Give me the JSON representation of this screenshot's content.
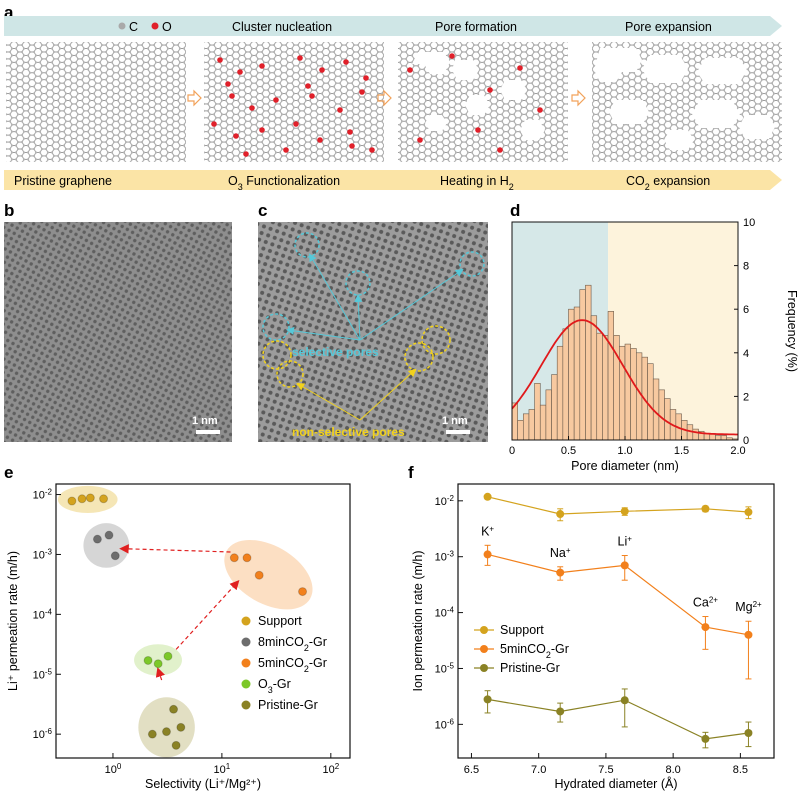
{
  "panels": {
    "a": {
      "letter": "a",
      "legend": [
        {
          "label": "C",
          "color": "#a9a9a9"
        },
        {
          "label": "O",
          "color": "#e0202a"
        }
      ],
      "steps_top": [
        "Cluster nucleation",
        "Pore formation",
        "Pore expansion"
      ],
      "steps_bottom": [
        {
          "main": "Pristine graphene",
          "sub": ""
        },
        {
          "main": "O",
          "sub": "3",
          "rest": " Functionalization"
        },
        {
          "main": "Heating in H",
          "sub": "2",
          "rest": ""
        },
        {
          "main": "CO",
          "sub": "2",
          "rest": " expansion"
        }
      ],
      "top_arrow_color": "#cfe6e6",
      "bottom_arrow_color": "#fbe4a6",
      "step_arrow_color": "#f2a25a"
    },
    "b": {
      "letter": "b",
      "scalebar": "1 nm"
    },
    "c": {
      "letter": "c",
      "scalebar": "1 nm",
      "label_selective": "selective pores",
      "label_nonselective": "non-selective pores",
      "color_selective": "#56c8d8",
      "color_nonselective": "#f2d21c"
    },
    "d": {
      "letter": "d"
    },
    "e": {
      "letter": "e"
    },
    "f": {
      "letter": "f"
    }
  },
  "chart_data": [
    {
      "id": "d",
      "type": "bar",
      "xlabel": "Pore diameter (nm)",
      "ylabel": "Frequency (%)",
      "xlim": [
        0,
        2.0
      ],
      "ylim": [
        0,
        10
      ],
      "xticks": [
        "0",
        "0.5",
        "1.0",
        "1.5",
        "2.0"
      ],
      "yticks": [
        "0",
        "2",
        "4",
        "6",
        "8",
        "10"
      ],
      "bin_width": 0.05,
      "bin_start": 0,
      "values": [
        1.7,
        0.9,
        1.2,
        1.4,
        2.6,
        1.6,
        2.3,
        3.0,
        4.3,
        5.1,
        6.0,
        6.1,
        6.9,
        7.1,
        5.7,
        4.9,
        4.8,
        5.9,
        4.8,
        4.3,
        4.4,
        4.2,
        4.0,
        3.8,
        3.5,
        2.8,
        2.3,
        1.9,
        1.4,
        1.2,
        0.9,
        0.7,
        0.5,
        0.4,
        0.3,
        0.3,
        0.2,
        0.2,
        0.1,
        0.05
      ],
      "fit": {
        "type": "gaussian",
        "mean": 0.62,
        "sigma": 0.36,
        "peak": 5.5,
        "baseline": 0.25,
        "color": "#e0191b"
      },
      "shading": [
        {
          "from": 0,
          "to": 0.85,
          "color": "#d6e8e8"
        },
        {
          "from": 0.85,
          "to": 2.0,
          "color": "#fdf3dc"
        }
      ],
      "bar_color": "#f7c9a0"
    },
    {
      "id": "e",
      "type": "scatter",
      "xlabel": "Selectivity (Li⁺/Mg²⁺)",
      "ylabel": "Li⁺ permeation rate (m/h)",
      "xscale": "log",
      "yscale": "log",
      "xlim": [
        0.3,
        150
      ],
      "ylim": [
        4e-07,
        0.015
      ],
      "xticks": [
        {
          "v": 1,
          "t": "10",
          "e": "0"
        },
        {
          "v": 10,
          "t": "10",
          "e": "1"
        },
        {
          "v": 100,
          "t": "10",
          "e": "2"
        }
      ],
      "yticks": [
        {
          "v": 1e-06,
          "t": "10",
          "e": "-6"
        },
        {
          "v": 1e-05,
          "t": "10",
          "e": "-5"
        },
        {
          "v": 0.0001,
          "t": "10",
          "e": "-4"
        },
        {
          "v": 0.001,
          "t": "10",
          "e": "-3"
        },
        {
          "v": 0.01,
          "t": "10",
          "e": "-2"
        }
      ],
      "legend": [
        {
          "label": "Support",
          "color": "#d4a31e"
        },
        {
          "label": "8minCO",
          "sub": "2",
          "rest": "-Gr",
          "color": "#6d6d6d"
        },
        {
          "label": "5minCO",
          "sub": "2",
          "rest": "-Gr",
          "color": "#f2801c"
        },
        {
          "label": "O",
          "sub": "3",
          "rest": "-Gr",
          "color": "#7cc829"
        },
        {
          "label": "Pristine-Gr",
          "color": "#8a8225"
        }
      ],
      "series": [
        {
          "name": "Support",
          "color": "#d4a31e",
          "halo": "#f3e2a9",
          "points": [
            [
              0.42,
              0.0078
            ],
            [
              0.52,
              0.0085
            ],
            [
              0.62,
              0.0088
            ],
            [
              0.82,
              0.0085
            ]
          ]
        },
        {
          "name": "8minCO2-Gr",
          "color": "#6d6d6d",
          "halo": "#cfcfcf",
          "points": [
            [
              0.72,
              0.0018
            ],
            [
              0.92,
              0.0021
            ],
            [
              1.05,
              0.00095
            ]
          ]
        },
        {
          "name": "5minCO2-Gr",
          "color": "#f2801c",
          "halo": "#fbd9b8",
          "points": [
            [
              13,
              0.00088
            ],
            [
              17,
              0.00088
            ],
            [
              22,
              0.00045
            ],
            [
              55,
              0.00024
            ]
          ]
        },
        {
          "name": "O3-Gr",
          "color": "#7cc829",
          "halo": "#dcefc2",
          "points": [
            [
              2.1,
              1.7e-05
            ],
            [
              2.6,
              1.5e-05
            ],
            [
              3.2,
              2e-05
            ]
          ]
        },
        {
          "name": "Pristine-Gr",
          "color": "#8a8225",
          "halo": "#ddd9b8",
          "points": [
            [
              2.3,
              1e-06
            ],
            [
              3.1,
              1.1e-06
            ],
            [
              3.6,
              2.6e-06
            ],
            [
              3.8,
              6.5e-07
            ],
            [
              4.2,
              1.3e-06
            ]
          ]
        }
      ],
      "arrows": [
        [
          [
            2.8,
            8e-06
          ],
          [
            2.6,
            1.2e-05
          ]
        ],
        [
          [
            3.8,
            2.6e-05
          ],
          [
            14,
            0.00035
          ]
        ],
        [
          [
            12,
            0.0011
          ],
          [
            1.2,
            0.00125
          ]
        ]
      ],
      "arrow_color": "#e02020"
    },
    {
      "id": "f",
      "type": "line",
      "xlabel": "Hydrated diameter (Å)",
      "ylabel": "Ion permeation rate (m/h)",
      "yscale": "log",
      "xlim": [
        6.4,
        8.75
      ],
      "ylim": [
        2.5e-07,
        0.02
      ],
      "xticks": [
        "6.5",
        "7.0",
        "7.5",
        "8.0",
        "8.5"
      ],
      "yticks": [
        {
          "v": 1e-06,
          "t": "10",
          "e": "-6"
        },
        {
          "v": 1e-05,
          "t": "10",
          "e": "-5"
        },
        {
          "v": 0.0001,
          "t": "10",
          "e": "-4"
        },
        {
          "v": 0.001,
          "t": "10",
          "e": "-3"
        },
        {
          "v": 0.01,
          "t": "10",
          "e": "-2"
        }
      ],
      "x": [
        6.62,
        7.16,
        7.64,
        8.24,
        8.56
      ],
      "ions": [
        {
          "t": "K",
          "sup": "+"
        },
        {
          "t": "Na",
          "sup": "+"
        },
        {
          "t": "Li",
          "sup": "+"
        },
        {
          "t": "Ca",
          "sup": "2+"
        },
        {
          "t": "Mg",
          "sup": "2+"
        }
      ],
      "legend": [
        {
          "label": "Support",
          "color": "#d4a31e"
        },
        {
          "label": "5minCO",
          "sub": "2",
          "rest": "-Gr",
          "color": "#f2801c"
        },
        {
          "label": "Pristine-Gr",
          "color": "#8a8225"
        }
      ],
      "series": [
        {
          "name": "Support",
          "color": "#d4a31e",
          "values": [
            0.0118,
            0.0058,
            0.0065,
            0.0072,
            0.0063
          ],
          "err_lo": [
            0.0108,
            0.0044,
            0.0055,
            0.0064,
            0.0048
          ],
          "err_hi": [
            0.0128,
            0.0072,
            0.0075,
            0.008,
            0.0078
          ]
        },
        {
          "name": "5minCO2-Gr",
          "color": "#f2801c",
          "values": [
            0.0011,
            0.00052,
            0.0007,
            5.5e-05,
            4e-05
          ],
          "err_lo": [
            0.0007,
            0.00038,
            0.00038,
            2.2e-05,
            6.5e-06
          ],
          "err_hi": [
            0.0016,
            0.00066,
            0.00105,
            8.5e-05,
            7e-05
          ]
        },
        {
          "name": "Pristine-Gr",
          "color": "#8a8225",
          "values": [
            2.8e-06,
            1.7e-06,
            2.7e-06,
            5.5e-07,
            7e-07
          ],
          "err_lo": [
            1.6e-06,
            1.1e-06,
            9e-07,
            3.8e-07,
            4e-07
          ],
          "err_hi": [
            4e-06,
            2.4e-06,
            4.3e-06,
            7.2e-07,
            1.1e-06
          ]
        }
      ]
    }
  ]
}
